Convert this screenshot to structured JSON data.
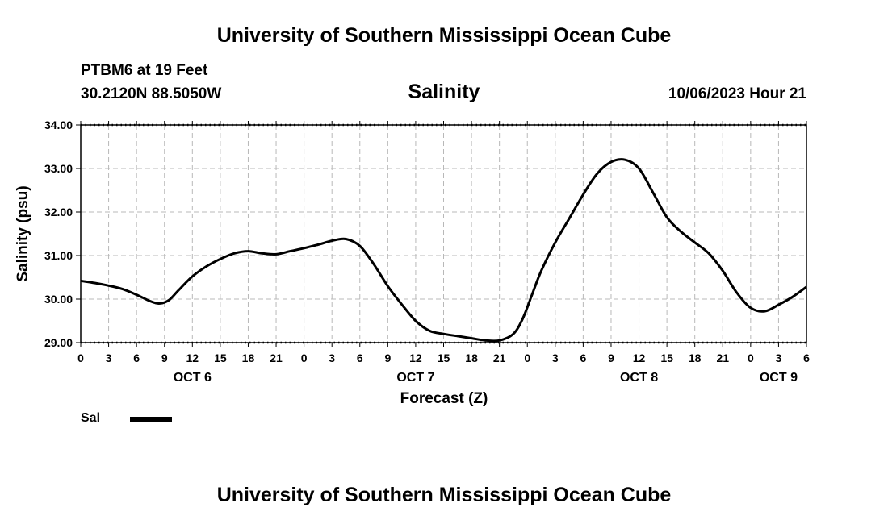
{
  "header": {
    "title": "University of Southern Mississippi Ocean Cube",
    "station": "PTBM6 at 19 Feet",
    "coordinates": "30.2120N  88.5050W",
    "issued": "10/06/2023 Hour 21"
  },
  "footer": {
    "title": "University of Southern Mississippi Ocean Cube"
  },
  "legend": {
    "label": "Sal"
  },
  "chart_data": {
    "type": "line",
    "title": "Salinity",
    "ylabel": "Salinity (psu)",
    "xlabel": "Forecast (Z)",
    "ylim": [
      29.0,
      34.0
    ],
    "yticks": [
      "29.00",
      "30.00",
      "31.00",
      "32.00",
      "33.00",
      "34.00"
    ],
    "xlim": [
      0,
      78
    ],
    "xticks": [
      "0",
      "3",
      "6",
      "9",
      "12",
      "15",
      "18",
      "21",
      "0",
      "3",
      "6",
      "9",
      "12",
      "15",
      "18",
      "21",
      "0",
      "3",
      "6",
      "9",
      "12",
      "15",
      "18",
      "21",
      "0",
      "3",
      "6"
    ],
    "day_labels": [
      {
        "label": "OCT 6",
        "hour": 12
      },
      {
        "label": "OCT 7",
        "hour": 36
      },
      {
        "label": "OCT 8",
        "hour": 60
      },
      {
        "label": "OCT 9",
        "hour": 75
      }
    ],
    "grid": true,
    "series": [
      {
        "name": "Sal",
        "color": "#000000",
        "x": [
          0,
          1.5,
          3,
          4.5,
          6,
          7.5,
          8.5,
          9.5,
          10.5,
          12,
          13.5,
          15,
          16.5,
          18,
          19.5,
          21,
          22.5,
          24,
          25.5,
          27,
          28.5,
          30,
          31.5,
          33,
          34.5,
          36,
          37.5,
          39,
          40.5,
          42,
          43.5,
          45,
          46.5,
          47.5,
          48.5,
          49.5,
          51,
          52.5,
          54,
          55.5,
          57,
          58.5,
          60,
          61.5,
          63,
          64.5,
          66,
          67.5,
          69,
          70.5,
          72,
          73.5,
          75,
          76.5,
          78
        ],
        "values": [
          30.42,
          30.37,
          30.31,
          30.23,
          30.1,
          29.95,
          29.9,
          29.98,
          30.2,
          30.52,
          30.75,
          30.92,
          31.05,
          31.1,
          31.05,
          31.03,
          31.1,
          31.17,
          31.25,
          31.34,
          31.38,
          31.22,
          30.8,
          30.3,
          29.88,
          29.5,
          29.27,
          29.2,
          29.15,
          29.1,
          29.05,
          29.05,
          29.2,
          29.55,
          30.1,
          30.65,
          31.3,
          31.85,
          32.4,
          32.88,
          33.15,
          33.2,
          33.0,
          32.45,
          31.88,
          31.55,
          31.3,
          31.05,
          30.65,
          30.15,
          29.8,
          29.72,
          29.87,
          30.05,
          30.28
        ]
      }
    ]
  }
}
